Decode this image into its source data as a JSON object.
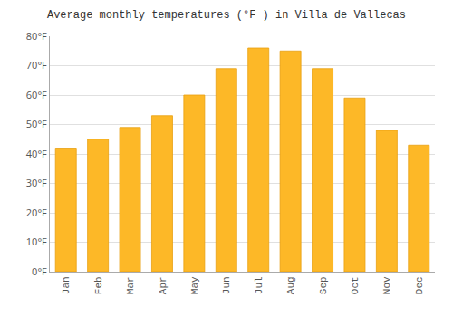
{
  "chart_data": {
    "type": "bar",
    "title": "Average monthly temperatures (°F ) in Villa de Vallecas",
    "categories": [
      "Jan",
      "Feb",
      "Mar",
      "Apr",
      "May",
      "Jun",
      "Jul",
      "Aug",
      "Sep",
      "Oct",
      "Nov",
      "Dec"
    ],
    "values": [
      42,
      45,
      49,
      53,
      60,
      69,
      76,
      75,
      69,
      59,
      48,
      43
    ],
    "color": "#FDB827",
    "ylim": [
      0,
      80
    ],
    "yticks": [
      {
        "value": 0,
        "label": "0°F"
      },
      {
        "value": 10,
        "label": "10°F"
      },
      {
        "value": 20,
        "label": "20°F"
      },
      {
        "value": 30,
        "label": "30°F"
      },
      {
        "value": 40,
        "label": "40°F"
      },
      {
        "value": 50,
        "label": "50°F"
      },
      {
        "value": 60,
        "label": "60°F"
      },
      {
        "value": 70,
        "label": "70°F"
      },
      {
        "value": 80,
        "label": "80°F"
      }
    ],
    "grid": true
  }
}
